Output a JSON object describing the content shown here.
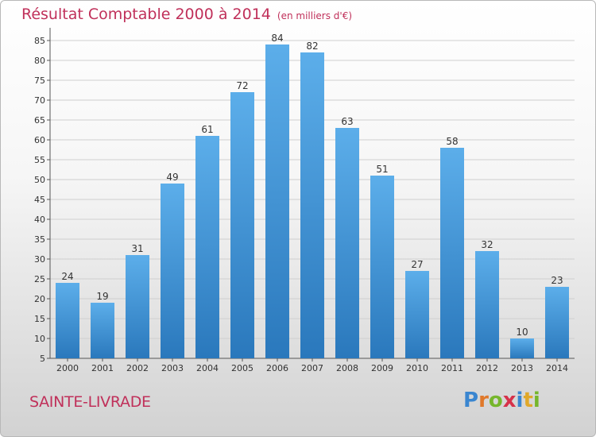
{
  "title": "Résultat Comptable 2000 à 2014",
  "subtitle": "(en milliers d'€)",
  "place": "SAINTE-LIVRADE",
  "logo_letters": [
    "P",
    "r",
    "o",
    "x",
    "i",
    "t",
    "i"
  ],
  "colors": {
    "title": "#c0305a",
    "bar_top": "#5caeea",
    "bar_bottom": "#2a78bc",
    "grid": "#cfcfcf"
  },
  "chart_data": {
    "type": "bar",
    "categories": [
      "2000",
      "2001",
      "2002",
      "2003",
      "2004",
      "2005",
      "2006",
      "2007",
      "2008",
      "2009",
      "2010",
      "2011",
      "2012",
      "2013",
      "2014"
    ],
    "values": [
      24,
      19,
      31,
      49,
      61,
      72,
      84,
      82,
      63,
      51,
      27,
      58,
      32,
      10,
      23
    ],
    "yticks": [
      5,
      10,
      15,
      20,
      25,
      30,
      35,
      40,
      45,
      50,
      55,
      60,
      65,
      70,
      75,
      80,
      85
    ],
    "ylim": [
      5,
      87
    ],
    "title": "Résultat Comptable 2000 à 2014",
    "xlabel": "",
    "ylabel": "",
    "grid": true
  }
}
